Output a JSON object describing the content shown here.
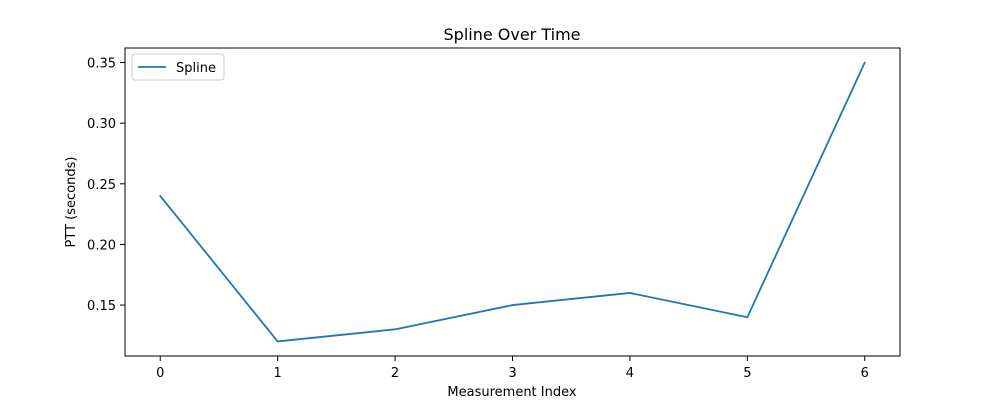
{
  "chart_data": {
    "type": "line",
    "title": "Spline Over Time",
    "xlabel": "Measurement Index",
    "ylabel": "PTT (seconds)",
    "x": [
      0,
      1,
      2,
      3,
      4,
      5,
      6
    ],
    "xticks": [
      0,
      1,
      2,
      3,
      4,
      5,
      6
    ],
    "yticks": [
      0.15,
      0.2,
      0.25,
      0.3,
      0.35
    ],
    "xlim": [
      -0.3,
      6.3
    ],
    "ylim": [
      0.108,
      0.362
    ],
    "grid": false,
    "legend_position": "top-left",
    "series": [
      {
        "name": "Spline",
        "color": "#1f77b4",
        "values": [
          0.24,
          0.12,
          0.13,
          0.15,
          0.16,
          0.14,
          0.35
        ]
      }
    ]
  }
}
